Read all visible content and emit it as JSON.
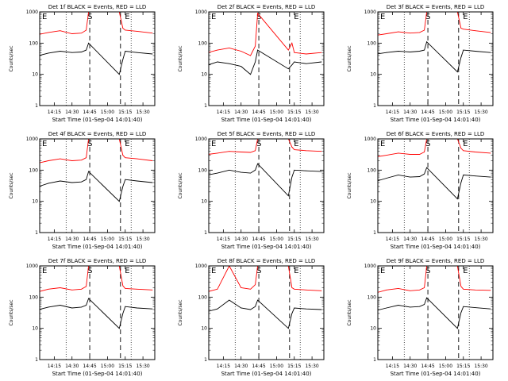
{
  "figure": {
    "xlabel": "Start Time (01-Sep-04 14:01:40)",
    "ylabel": "Counts/sec",
    "x_ticks": [
      "14:15",
      "14:30",
      "14:45",
      "15:00",
      "15:15",
      "15:30"
    ],
    "y_ticks": [
      "1",
      "10",
      "100",
      "1000"
    ],
    "markers": {
      "start": "E",
      "mid": "S",
      "end": "E"
    },
    "colors": {
      "events": "#000000",
      "lld": "#ff0000"
    }
  },
  "chart_data": [
    {
      "type": "line",
      "title": "Det 1f BLACK = Events, RED = LLD",
      "xlabel": "Start Time (01-Sep-04 14:01:40)",
      "ylabel": "Counts/sec",
      "y_scale": "log",
      "ylim": [
        1,
        1000
      ],
      "xlim": [
        "14:01:40",
        "15:40"
      ],
      "series": [
        {
          "color": "red",
          "x": [
            "14:02",
            "14:10",
            "14:20",
            "14:30",
            "14:38",
            "14:42",
            "14:44",
            "15:10",
            "15:13",
            "15:15",
            "15:25",
            "15:38"
          ],
          "y": [
            190,
            220,
            250,
            200,
            210,
            260,
            1000,
            1000,
            300,
            260,
            240,
            210
          ]
        },
        {
          "color": "black",
          "x": [
            "14:02",
            "14:10",
            "14:20",
            "14:30",
            "14:38",
            "14:42",
            "14:44",
            "15:10",
            "15:13",
            "15:15",
            "15:25",
            "15:38"
          ],
          "y": [
            40,
            48,
            55,
            50,
            52,
            60,
            100,
            10,
            30,
            55,
            50,
            45
          ]
        }
      ]
    },
    {
      "type": "line",
      "title": "Det 2f BLACK = Events, RED = LLD",
      "xlabel": "Start Time (01-Sep-04 14:01:40)",
      "ylabel": "Counts/sec",
      "y_scale": "log",
      "ylim": [
        1,
        1000
      ],
      "xlim": [
        "14:01:40",
        "15:40"
      ],
      "series": [
        {
          "color": "red",
          "x": [
            "14:02",
            "14:10",
            "14:20",
            "14:30",
            "14:38",
            "14:42",
            "14:44",
            "15:10",
            "15:13",
            "15:15",
            "15:25",
            "15:38"
          ],
          "y": [
            50,
            60,
            70,
            55,
            40,
            80,
            900,
            60,
            100,
            50,
            45,
            50
          ]
        },
        {
          "color": "black",
          "x": [
            "14:02",
            "14:10",
            "14:20",
            "14:30",
            "14:38",
            "14:42",
            "14:44",
            "15:10",
            "15:13",
            "15:15",
            "15:25",
            "15:38"
          ],
          "y": [
            20,
            25,
            22,
            18,
            10,
            25,
            60,
            15,
            20,
            25,
            22,
            25
          ]
        }
      ]
    },
    {
      "type": "line",
      "title": "Det 3f BLACK = Events, RED = LLD",
      "xlabel": "Start Time (01-Sep-04 14:01:40)",
      "ylabel": "Counts/sec",
      "y_scale": "log",
      "ylim": [
        1,
        1000
      ],
      "xlim": [
        "14:01:40",
        "15:40"
      ],
      "series": [
        {
          "color": "red",
          "x": [
            "14:02",
            "14:10",
            "14:20",
            "14:30",
            "14:38",
            "14:42",
            "14:44",
            "15:10",
            "15:13",
            "15:15",
            "15:25",
            "15:38"
          ],
          "y": [
            180,
            200,
            230,
            210,
            220,
            260,
            1000,
            1000,
            300,
            280,
            250,
            220
          ]
        },
        {
          "color": "black",
          "x": [
            "14:02",
            "14:10",
            "14:20",
            "14:30",
            "14:38",
            "14:42",
            "14:44",
            "15:10",
            "15:13",
            "15:15",
            "15:25",
            "15:38"
          ],
          "y": [
            45,
            50,
            55,
            52,
            55,
            60,
            110,
            12,
            35,
            60,
            55,
            50
          ]
        }
      ]
    },
    {
      "type": "line",
      "title": "Det 4f BLACK = Events, RED = LLD",
      "xlabel": "Start Time (01-Sep-04 14:01:40)",
      "ylabel": "Counts/sec",
      "y_scale": "log",
      "ylim": [
        1,
        1000
      ],
      "xlim": [
        "14:01:40",
        "15:40"
      ],
      "series": [
        {
          "color": "red",
          "x": [
            "14:02",
            "14:10",
            "14:20",
            "14:30",
            "14:38",
            "14:42",
            "14:44",
            "15:10",
            "15:13",
            "15:15",
            "15:25",
            "15:38"
          ],
          "y": [
            170,
            200,
            230,
            200,
            210,
            250,
            1000,
            1000,
            300,
            250,
            230,
            200
          ]
        },
        {
          "color": "black",
          "x": [
            "14:02",
            "14:10",
            "14:20",
            "14:30",
            "14:38",
            "14:42",
            "14:44",
            "15:10",
            "15:13",
            "15:15",
            "15:25",
            "15:38"
          ],
          "y": [
            30,
            38,
            45,
            40,
            42,
            50,
            90,
            10,
            30,
            50,
            45,
            40
          ]
        }
      ]
    },
    {
      "type": "line",
      "title": "Det 5f BLACK = Events, RED = LLD",
      "xlabel": "Start Time (01-Sep-04 14:01:40)",
      "ylabel": "Counts/sec",
      "y_scale": "log",
      "ylim": [
        1,
        1000
      ],
      "xlim": [
        "14:01:40",
        "15:40"
      ],
      "series": [
        {
          "color": "red",
          "x": [
            "14:02",
            "14:10",
            "14:20",
            "14:30",
            "14:38",
            "14:42",
            "14:44",
            "15:10",
            "15:13",
            "15:15",
            "15:25",
            "15:38"
          ],
          "y": [
            320,
            350,
            400,
            380,
            370,
            420,
            1000,
            1000,
            550,
            450,
            420,
            400
          ]
        },
        {
          "color": "black",
          "x": [
            "14:02",
            "14:10",
            "14:20",
            "14:30",
            "14:38",
            "14:42",
            "14:44",
            "15:10",
            "15:13",
            "15:15",
            "15:25",
            "15:38"
          ],
          "y": [
            70,
            80,
            100,
            85,
            80,
            100,
            160,
            15,
            60,
            100,
            95,
            90
          ]
        }
      ]
    },
    {
      "type": "line",
      "title": "Det 6f BLACK = Events, RED = LLD",
      "xlabel": "Start Time (01-Sep-04 14:01:40)",
      "ylabel": "Counts/sec",
      "y_scale": "log",
      "ylim": [
        1,
        1000
      ],
      "xlim": [
        "14:01:40",
        "15:40"
      ],
      "series": [
        {
          "color": "red",
          "x": [
            "14:02",
            "14:10",
            "14:20",
            "14:30",
            "14:38",
            "14:42",
            "14:44",
            "15:10",
            "15:13",
            "15:15",
            "15:25",
            "15:38"
          ],
          "y": [
            270,
            300,
            350,
            320,
            320,
            380,
            1000,
            1000,
            500,
            420,
            380,
            350
          ]
        },
        {
          "color": "black",
          "x": [
            "14:02",
            "14:10",
            "14:20",
            "14:30",
            "14:38",
            "14:42",
            "14:44",
            "15:10",
            "15:13",
            "15:15",
            "15:25",
            "15:38"
          ],
          "y": [
            45,
            55,
            70,
            60,
            62,
            75,
            120,
            12,
            40,
            70,
            65,
            60
          ]
        }
      ]
    },
    {
      "type": "line",
      "title": "Det 7f BLACK = Events, RED = LLD",
      "xlabel": "Start Time (01-Sep-04 14:01:40)",
      "ylabel": "Counts/sec",
      "y_scale": "log",
      "ylim": [
        1,
        1000
      ],
      "xlim": [
        "14:01:40",
        "15:40"
      ],
      "series": [
        {
          "color": "red",
          "x": [
            "14:02",
            "14:10",
            "14:20",
            "14:30",
            "14:38",
            "14:42",
            "14:44",
            "15:10",
            "15:13",
            "15:15",
            "15:25",
            "15:38"
          ],
          "y": [
            150,
            180,
            200,
            170,
            180,
            220,
            1000,
            1000,
            230,
            190,
            180,
            170
          ]
        },
        {
          "color": "black",
          "x": [
            "14:02",
            "14:10",
            "14:20",
            "14:30",
            "14:38",
            "14:42",
            "14:44",
            "15:10",
            "15:13",
            "15:15",
            "15:25",
            "15:38"
          ],
          "y": [
            40,
            48,
            55,
            45,
            48,
            55,
            90,
            10,
            30,
            50,
            45,
            42
          ]
        }
      ]
    },
    {
      "type": "line",
      "title": "Det 8f BLACK = Events, RED = LLD",
      "xlabel": "Start Time (01-Sep-04 14:01:40)",
      "ylabel": "Counts/sec",
      "y_scale": "log",
      "ylim": [
        1,
        1000
      ],
      "xlim": [
        "14:01:40",
        "15:40"
      ],
      "series": [
        {
          "color": "red",
          "x": [
            "14:02",
            "14:10",
            "14:20",
            "14:30",
            "14:38",
            "14:42",
            "14:44",
            "15:10",
            "15:13",
            "15:15",
            "15:25",
            "15:38"
          ],
          "y": [
            150,
            180,
            1000,
            200,
            180,
            250,
            1000,
            1000,
            200,
            180,
            170,
            160
          ]
        },
        {
          "color": "black",
          "x": [
            "14:02",
            "14:10",
            "14:20",
            "14:30",
            "14:38",
            "14:42",
            "14:44",
            "15:10",
            "15:13",
            "15:15",
            "15:25",
            "15:38"
          ],
          "y": [
            35,
            42,
            80,
            45,
            40,
            50,
            80,
            10,
            30,
            45,
            42,
            40
          ]
        }
      ]
    },
    {
      "type": "line",
      "title": "Det 9f BLACK = Events, RED = LLD",
      "xlabel": "Start Time (01-Sep-04 14:01:40)",
      "ylabel": "Counts/sec",
      "y_scale": "log",
      "ylim": [
        1,
        1000
      ],
      "xlim": [
        "14:01:40",
        "15:40"
      ],
      "series": [
        {
          "color": "red",
          "x": [
            "14:02",
            "14:10",
            "14:20",
            "14:30",
            "14:38",
            "14:42",
            "14:44",
            "15:10",
            "15:13",
            "15:15",
            "15:25",
            "15:38"
          ],
          "y": [
            140,
            170,
            190,
            160,
            170,
            200,
            1000,
            1000,
            220,
            180,
            170,
            165
          ]
        },
        {
          "color": "black",
          "x": [
            "14:02",
            "14:10",
            "14:20",
            "14:30",
            "14:38",
            "14:42",
            "14:44",
            "15:10",
            "15:13",
            "15:15",
            "15:25",
            "15:38"
          ],
          "y": [
            38,
            45,
            55,
            48,
            50,
            58,
            95,
            10,
            32,
            50,
            46,
            42
          ]
        }
      ]
    }
  ]
}
